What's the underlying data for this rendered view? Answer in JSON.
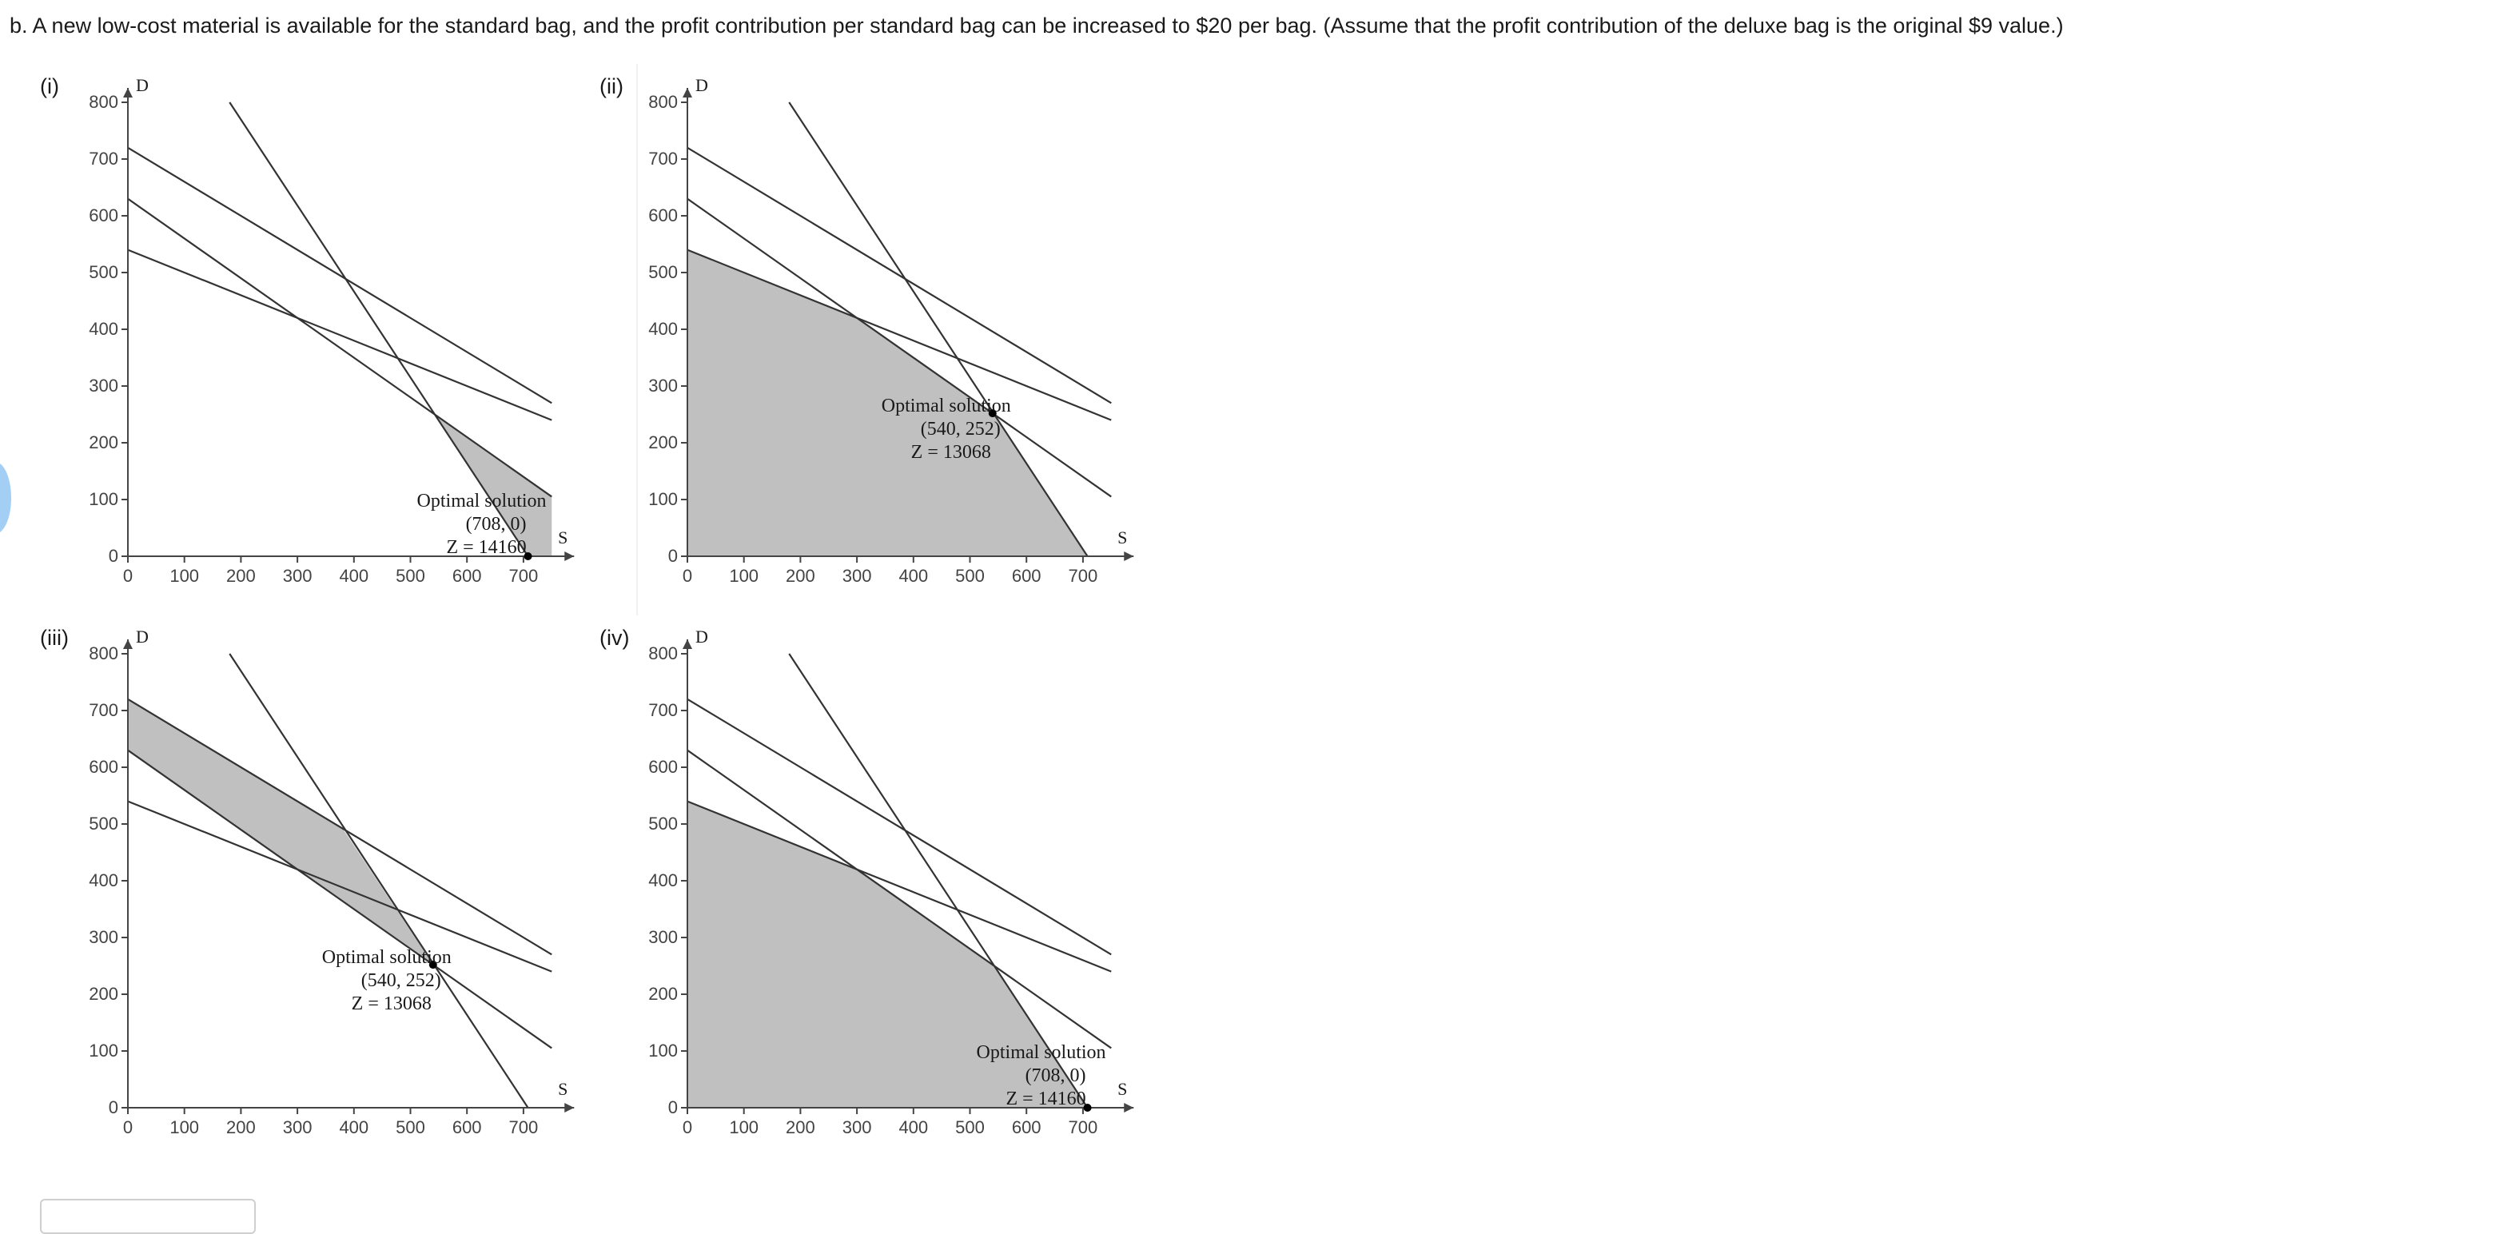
{
  "question": {
    "text": "b.  A new low-cost material is available for the standard bag, and the profit contribution per standard bag can be increased to $20 per bag. (Assume that the profit contribution of the deluxe bag is the original $9 value.)"
  },
  "colors": {
    "feasible_fill": "#c0c0c0",
    "line": "#333333",
    "axis": "#444444",
    "text": "#1a1a1a"
  },
  "chart_data": [
    {
      "type": "line",
      "panel_label": "(i)",
      "xlabel": "S",
      "ylabel": "D",
      "xlim": [
        0,
        750
      ],
      "ylim": [
        0,
        800
      ],
      "xticks": [
        0,
        100,
        200,
        300,
        400,
        500,
        600,
        700
      ],
      "yticks": [
        0,
        100,
        200,
        300,
        400,
        500,
        600,
        700,
        800
      ],
      "constraint_lines": [
        {
          "name": "line-a",
          "x": [
            0,
            750
          ],
          "y": [
            720,
            270
          ]
        },
        {
          "name": "line-b",
          "x": [
            0,
            750
          ],
          "y": [
            540,
            240
          ]
        },
        {
          "name": "line-c",
          "x": [
            0,
            750
          ],
          "y": [
            630,
            105
          ]
        },
        {
          "name": "line-d",
          "x": [
            180,
            708
          ],
          "y": [
            800,
            0
          ]
        }
      ],
      "shaded_region": {
        "x": [
          540,
          750,
          750,
          708
        ],
        "y": [
          252,
          105,
          0,
          0
        ]
      },
      "optimal_point": {
        "x": 708,
        "y": 0
      },
      "annotation": {
        "title": "Optimal solution",
        "point": "(708, 0)",
        "z": "Z = 14160"
      }
    },
    {
      "type": "line",
      "panel_label": "(ii)",
      "xlabel": "S",
      "ylabel": "D",
      "xlim": [
        0,
        750
      ],
      "ylim": [
        0,
        800
      ],
      "xticks": [
        0,
        100,
        200,
        300,
        400,
        500,
        600,
        700
      ],
      "yticks": [
        0,
        100,
        200,
        300,
        400,
        500,
        600,
        700,
        800
      ],
      "constraint_lines": [
        {
          "name": "line-a",
          "x": [
            0,
            750
          ],
          "y": [
            720,
            270
          ]
        },
        {
          "name": "line-b",
          "x": [
            0,
            750
          ],
          "y": [
            540,
            240
          ]
        },
        {
          "name": "line-c",
          "x": [
            0,
            750
          ],
          "y": [
            630,
            105
          ]
        },
        {
          "name": "line-d",
          "x": [
            180,
            708
          ],
          "y": [
            800,
            0
          ]
        }
      ],
      "shaded_region": {
        "x": [
          0,
          0,
          300,
          540,
          708
        ],
        "y": [
          0,
          540,
          420,
          252,
          0
        ]
      },
      "optimal_point": {
        "x": 540,
        "y": 252
      },
      "annotation": {
        "title": "Optimal solution",
        "point": "(540, 252)",
        "z": "Z = 13068"
      }
    },
    {
      "type": "line",
      "panel_label": "(iii)",
      "xlabel": "S",
      "ylabel": "D",
      "xlim": [
        0,
        750
      ],
      "ylim": [
        0,
        800
      ],
      "xticks": [
        0,
        100,
        200,
        300,
        400,
        500,
        600,
        700
      ],
      "yticks": [
        0,
        100,
        200,
        300,
        400,
        500,
        600,
        700,
        800
      ],
      "constraint_lines": [
        {
          "name": "line-a",
          "x": [
            0,
            750
          ],
          "y": [
            720,
            270
          ]
        },
        {
          "name": "line-b",
          "x": [
            0,
            750
          ],
          "y": [
            540,
            240
          ]
        },
        {
          "name": "line-c",
          "x": [
            0,
            750
          ],
          "y": [
            630,
            105
          ]
        },
        {
          "name": "line-d",
          "x": [
            180,
            708
          ],
          "y": [
            800,
            0
          ]
        }
      ],
      "shaded_region": {
        "x": [
          0,
          380,
          540,
          0
        ],
        "y": [
          720,
          492,
          252,
          630
        ]
      },
      "optimal_point": {
        "x": 540,
        "y": 252
      },
      "annotation": {
        "title": "Optimal solution",
        "point": "(540, 252)",
        "z": "Z = 13068"
      }
    },
    {
      "type": "line",
      "panel_label": "(iv)",
      "xlabel": "S",
      "ylabel": "D",
      "xlim": [
        0,
        750
      ],
      "ylim": [
        0,
        800
      ],
      "xticks": [
        0,
        100,
        200,
        300,
        400,
        500,
        600,
        700
      ],
      "yticks": [
        0,
        100,
        200,
        300,
        400,
        500,
        600,
        700,
        800
      ],
      "constraint_lines": [
        {
          "name": "line-a",
          "x": [
            0,
            750
          ],
          "y": [
            720,
            270
          ]
        },
        {
          "name": "line-b",
          "x": [
            0,
            750
          ],
          "y": [
            540,
            240
          ]
        },
        {
          "name": "line-c",
          "x": [
            0,
            750
          ],
          "y": [
            630,
            105
          ]
        },
        {
          "name": "line-d",
          "x": [
            180,
            708
          ],
          "y": [
            800,
            0
          ]
        }
      ],
      "shaded_region": {
        "x": [
          0,
          0,
          300,
          540,
          708
        ],
        "y": [
          0,
          540,
          420,
          252,
          0
        ]
      },
      "optimal_point": {
        "x": 708,
        "y": 0
      },
      "annotation": {
        "title": "Optimal solution",
        "point": "(708, 0)",
        "z": "Z = 14160"
      }
    }
  ]
}
